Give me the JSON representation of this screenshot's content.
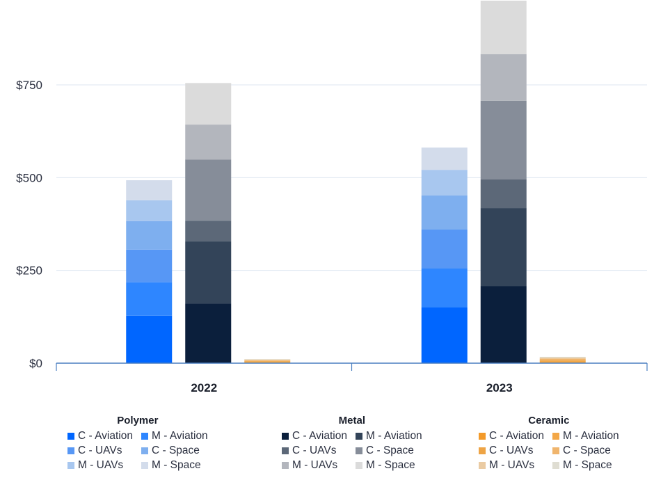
{
  "chart_data": {
    "type": "bar",
    "stacked": true,
    "title": "",
    "xlabel": "",
    "ylabel": "",
    "categories": [
      "2022",
      "2023"
    ],
    "ylim": [
      0,
      975
    ],
    "yticks": [
      0,
      250,
      500,
      750
    ],
    "ytick_labels": [
      "$0",
      "$250",
      "$500",
      "$750"
    ],
    "grid": true,
    "legend_position": "bottom",
    "groups": [
      {
        "name": "Polymer",
        "series": [
          {
            "name": "C - Aviation",
            "color": "#0066ff",
            "values": [
              128,
              150
            ]
          },
          {
            "name": "M - Aviation",
            "color": "#2e86ff",
            "values": [
              90,
              105
            ]
          },
          {
            "name": "C - UAVs",
            "color": "#5797f5",
            "values": [
              88,
              105
            ]
          },
          {
            "name": "C - Space",
            "color": "#7eafef",
            "values": [
              77,
              92
            ]
          },
          {
            "name": "M - UAVs",
            "color": "#a8c7ef",
            "values": [
              56,
              69
            ]
          },
          {
            "name": "M - Space",
            "color": "#d3dceb",
            "values": [
              54,
              60
            ]
          }
        ]
      },
      {
        "name": "Metal",
        "series": [
          {
            "name": "C - Aviation",
            "color": "#0b1f3c",
            "values": [
              161,
              208
            ]
          },
          {
            "name": "M - Aviation",
            "color": "#334459",
            "values": [
              167,
              210
            ]
          },
          {
            "name": "C - UAVs",
            "color": "#5c6878",
            "values": [
              56,
              77
            ]
          },
          {
            "name": "C - Space",
            "color": "#868d99",
            "values": [
              165,
              212
            ]
          },
          {
            "name": "M - UAVs",
            "color": "#b3b6bd",
            "values": [
              94,
              126
            ]
          },
          {
            "name": "M - Space",
            "color": "#dbdbdb",
            "values": [
              112,
              144
            ]
          }
        ]
      },
      {
        "name": "Ceramic",
        "series": [
          {
            "name": "C - Aviation",
            "color": "#f39a2a",
            "values": [
              2,
              3
            ]
          },
          {
            "name": "M - Aviation",
            "color": "#f3a746",
            "values": [
              2,
              3
            ]
          },
          {
            "name": "C - UAVs",
            "color": "#eea445",
            "values": [
              2,
              3
            ]
          },
          {
            "name": "C - Space",
            "color": "#f0b56d",
            "values": [
              2,
              3
            ]
          },
          {
            "name": "M - UAVs",
            "color": "#eacba3",
            "values": [
              2,
              3
            ]
          },
          {
            "name": "M - Space",
            "color": "#dfddd2",
            "values": [
              1,
              2
            ]
          }
        ]
      }
    ]
  }
}
